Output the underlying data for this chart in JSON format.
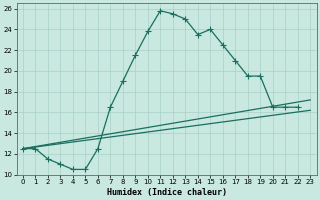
{
  "xlabel": "Humidex (Indice chaleur)",
  "xlim": [
    -0.5,
    23.5
  ],
  "ylim": [
    10,
    26.5
  ],
  "yticks": [
    10,
    12,
    14,
    16,
    18,
    20,
    22,
    24,
    26
  ],
  "xticks": [
    0,
    1,
    2,
    3,
    4,
    5,
    6,
    7,
    8,
    9,
    10,
    11,
    12,
    13,
    14,
    15,
    16,
    17,
    18,
    19,
    20,
    21,
    22,
    23
  ],
  "bg_color": "#c8e8e0",
  "line_color": "#1a6e60",
  "grid_color": "#a8d0c8",
  "curve_x": [
    0,
    1,
    2,
    3,
    4,
    5,
    6,
    7,
    8,
    9,
    10,
    11,
    12,
    13,
    14,
    15,
    16,
    17,
    18,
    19,
    20,
    21,
    22
  ],
  "curve_y": [
    12.5,
    12.5,
    11.5,
    11.0,
    10.5,
    10.5,
    12.5,
    16.5,
    19.0,
    21.5,
    23.8,
    25.8,
    25.5,
    25.0,
    23.5,
    24.0,
    22.5,
    21.0,
    19.5,
    19.5,
    16.5,
    16.5,
    16.5
  ],
  "line1_x": [
    0,
    23
  ],
  "line1_y": [
    12.5,
    16.2
  ],
  "line2_x": [
    0,
    23
  ],
  "line2_y": [
    12.5,
    17.2
  ]
}
